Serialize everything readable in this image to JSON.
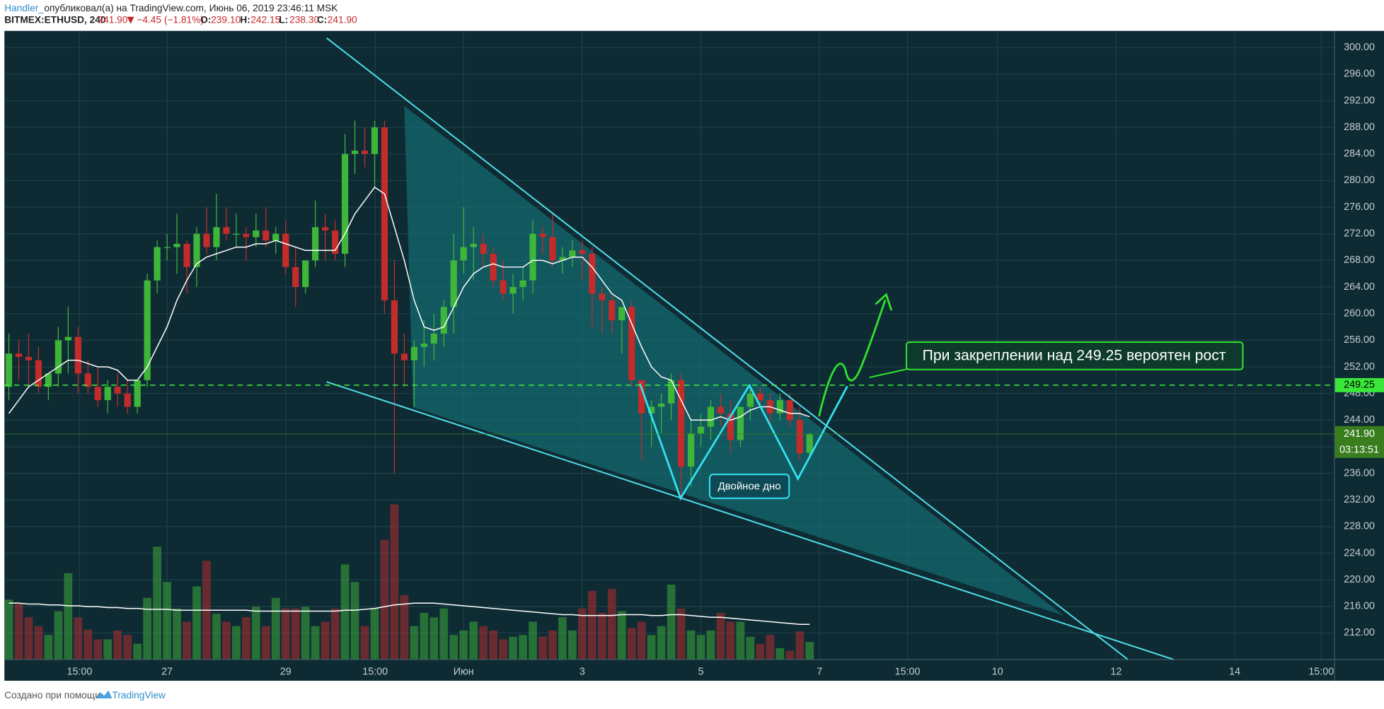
{
  "header": {
    "author": "Handler_",
    "published": "опубликовал(а) на TradingView.com, Июнь 06, 2019 23:46:11 MSK",
    "symbol": "BITMEX:ETHUSD, 240",
    "last": "241.90",
    "change": "−4.45 (−1.81%)",
    "ohlc": [
      {
        "label": "O:",
        "value": "239.10"
      },
      {
        "label": "H:",
        "value": "242.15"
      },
      {
        "label": "L:",
        "value": "238.30"
      },
      {
        "label": "C:",
        "value": "241.90"
      }
    ]
  },
  "chart_data": {
    "type": "candlestick",
    "open": [
      249,
      254,
      253.5,
      253,
      249,
      251,
      256,
      256.5,
      251,
      249,
      247,
      249,
      248,
      246,
      250,
      265,
      270,
      270,
      270.5,
      267,
      272,
      270,
      273,
      272,
      272,
      271.5,
      272.5,
      271,
      272,
      267,
      264,
      268,
      273,
      272.5,
      269,
      284,
      284.5,
      284,
      288,
      262,
      254,
      253,
      255,
      255.5,
      257,
      261,
      268,
      270,
      270.5,
      269,
      265,
      263,
      264,
      265,
      272,
      271.5,
      268,
      268.5,
      269.5,
      269,
      263,
      262,
      259,
      261,
      250,
      245,
      246,
      246.5,
      250,
      237,
      242,
      243,
      246,
      245,
      241,
      246,
      248,
      247,
      245,
      247,
      244,
      239.1
    ],
    "high": [
      257,
      256,
      257,
      255,
      251,
      258,
      261,
      258,
      253,
      252,
      250,
      251,
      250,
      250,
      266,
      271,
      272,
      275,
      271,
      273,
      276,
      278,
      276,
      275,
      273,
      275,
      276,
      273,
      274,
      270,
      268,
      277,
      275,
      274,
      287,
      289,
      288,
      289,
      289,
      268,
      257,
      256,
      259,
      260,
      262,
      272,
      276,
      273,
      272,
      270,
      268,
      266,
      267,
      274,
      273,
      275,
      270,
      271,
      271,
      270,
      264,
      263,
      261,
      262,
      250,
      247,
      248,
      251,
      251,
      244,
      245,
      247,
      248,
      247,
      246,
      249,
      249,
      248,
      248,
      248,
      246,
      242.15
    ],
    "low": [
      247,
      250,
      249,
      248,
      247,
      249,
      251,
      248,
      248,
      246,
      245,
      246,
      245,
      245,
      249,
      263,
      268,
      266,
      263,
      264,
      269,
      268,
      271,
      270,
      268,
      270,
      270,
      269,
      266,
      261,
      263,
      267,
      268,
      268,
      267,
      281,
      282,
      279,
      260,
      236,
      249,
      246,
      252,
      253,
      255,
      257,
      266,
      265,
      267,
      264,
      262,
      260,
      262,
      263,
      269,
      267,
      266,
      267,
      265,
      258,
      257,
      257,
      254,
      249,
      238,
      240,
      242,
      244,
      232,
      234,
      240,
      241,
      243,
      239,
      240,
      244,
      246,
      243,
      244,
      243,
      238,
      238.3
    ],
    "close": [
      254,
      253.5,
      253,
      249,
      251,
      256,
      256.5,
      251,
      249,
      247,
      249,
      248,
      246,
      250,
      265,
      270,
      270,
      270.5,
      267,
      272,
      270,
      273,
      272,
      272,
      271.5,
      272.5,
      271,
      272,
      267,
      264,
      268,
      273,
      272.5,
      269,
      284,
      284.5,
      284,
      288,
      262,
      254,
      253,
      255,
      255.5,
      257,
      261,
      268,
      270,
      270.5,
      269,
      265,
      263,
      264,
      265,
      272,
      271.5,
      268,
      268.5,
      269.5,
      269,
      263,
      262,
      259,
      261,
      250,
      245,
      246,
      246.5,
      250,
      237,
      242,
      243,
      246,
      245,
      241,
      246,
      248,
      247,
      245,
      247,
      244,
      239,
      241.9
    ],
    "ma": [
      245,
      247,
      249,
      250,
      251,
      252,
      253,
      253,
      252.5,
      252,
      252,
      251.5,
      250,
      250,
      252,
      255,
      258,
      262,
      265,
      267.5,
      268.5,
      269,
      269.5,
      270,
      270,
      270.5,
      270.5,
      271,
      270.5,
      270,
      269.5,
      269.5,
      269.5,
      269.5,
      272,
      275,
      277,
      279,
      278,
      273,
      268,
      262,
      258,
      257.5,
      258,
      261,
      264,
      266,
      267,
      267.5,
      267,
      267,
      267,
      268,
      268,
      267.5,
      268,
      268.5,
      268.5,
      267,
      265,
      263,
      262,
      258.5,
      255,
      252,
      250.5,
      250,
      247,
      244,
      244,
      244,
      244.5,
      244,
      244.5,
      245.5,
      246,
      246,
      245.5,
      245,
      245,
      244.5
    ],
    "volume": [
      68,
      63,
      48,
      38,
      28,
      55,
      98,
      48,
      34,
      23,
      23,
      33,
      28,
      18,
      70,
      128,
      88,
      58,
      43,
      83,
      112,
      52,
      43,
      38,
      48,
      60,
      38,
      70,
      58,
      58,
      60,
      38,
      43,
      58,
      108,
      88,
      38,
      58,
      136,
      176,
      73,
      38,
      53,
      48,
      58,
      28,
      33,
      43,
      38,
      33,
      23,
      26,
      28,
      43,
      26,
      33,
      48,
      33,
      58,
      78,
      53,
      80,
      55,
      36,
      43,
      28,
      38,
      85,
      58,
      33,
      28,
      33,
      53,
      43,
      43,
      26,
      18,
      28,
      13,
      10,
      32,
      20
    ],
    "volume_ma": [
      64,
      64,
      63,
      63,
      62,
      62,
      61,
      61,
      60,
      60,
      59,
      59,
      58,
      58,
      57,
      57,
      57,
      56,
      56,
      56,
      56,
      56,
      56,
      56,
      56,
      55,
      55,
      55,
      55,
      55,
      55,
      55,
      55,
      55,
      56,
      56,
      57,
      58,
      60,
      62,
      63,
      64,
      64,
      64,
      63,
      62,
      61,
      60,
      59,
      58,
      57,
      56,
      55,
      54,
      53,
      52,
      51,
      51,
      50,
      50,
      50,
      50,
      51,
      51,
      51,
      50,
      50,
      51,
      51,
      50,
      49,
      48,
      48,
      47,
      46,
      45,
      44,
      43,
      42,
      41,
      40,
      40
    ],
    "volume_lim": [
      0,
      200
    ],
    "up_color": "#3fb53a",
    "down_color": "#c42b2b",
    "ma_color": "#ffffff",
    "xlim": [
      -0.45,
      134.1
    ],
    "ylim": [
      208,
      302.5
    ],
    "xticks": [
      {
        "value": 7.15,
        "label": "15:00"
      },
      {
        "value": 16,
        "label": "27"
      },
      {
        "value": 28,
        "label": "29"
      },
      {
        "value": 37.05,
        "label": "15:00"
      },
      {
        "value": 46,
        "label": "Июн"
      },
      {
        "value": 58,
        "label": "3"
      },
      {
        "value": 70,
        "label": "5"
      },
      {
        "value": 82,
        "label": "7"
      },
      {
        "value": 90.9,
        "label": "15:00"
      },
      {
        "value": 100,
        "label": "10"
      },
      {
        "value": 112,
        "label": "12"
      },
      {
        "value": 124,
        "label": "14"
      },
      {
        "value": 132.75,
        "label": "15:00"
      }
    ],
    "yticks": [
      {
        "value": 212,
        "label": "212.00"
      },
      {
        "value": 216,
        "label": "216.00"
      },
      {
        "value": 220,
        "label": "220.00"
      },
      {
        "value": 224,
        "label": "224.00"
      },
      {
        "value": 228,
        "label": "228.00"
      },
      {
        "value": 232,
        "label": "232.00"
      },
      {
        "value": 236,
        "label": "236.00"
      },
      {
        "value": 240,
        "label": "240.00"
      },
      {
        "value": 244,
        "label": "244.00"
      },
      {
        "value": 248,
        "label": "248.00"
      },
      {
        "value": 252,
        "label": "252.00"
      },
      {
        "value": 256,
        "label": "256.00"
      },
      {
        "value": 260,
        "label": "260.00"
      },
      {
        "value": 264,
        "label": "264.00"
      },
      {
        "value": 268,
        "label": "268.00"
      },
      {
        "value": 272,
        "label": "272.00"
      },
      {
        "value": 276,
        "label": "276.00"
      },
      {
        "value": 280,
        "label": "280.00"
      },
      {
        "value": 284,
        "label": "284.00"
      },
      {
        "value": 288,
        "label": "288.00"
      },
      {
        "value": 292,
        "label": "292.00"
      },
      {
        "value": 296,
        "label": "296.00"
      },
      {
        "value": 300,
        "label": "300.00"
      }
    ],
    "grid": true,
    "level": {
      "value": 249.25,
      "label": "249.25"
    },
    "last_price": {
      "value": 241.9,
      "label": "241.90"
    },
    "countdown": "03:13:51",
    "annotations": [
      "Двойное дно",
      "При закреплении над 249.25 вероятен рост"
    ]
  },
  "footer": {
    "text": "Создано при помощи",
    "brand": "TradingView"
  }
}
